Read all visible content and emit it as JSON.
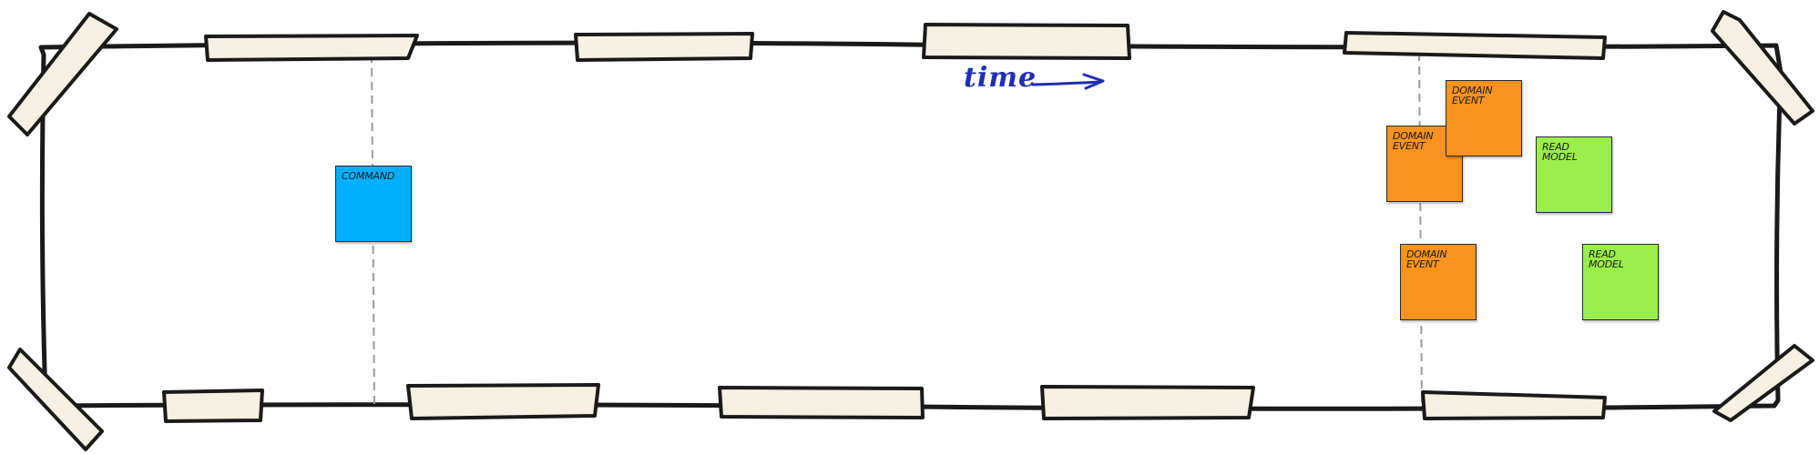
{
  "timeline": {
    "label": "time"
  },
  "stickies": [
    {
      "type": "command",
      "label": "Command",
      "color": "#00b0ff"
    },
    {
      "type": "domain-event",
      "label": "Domain\nEvent",
      "color": "#f7931e"
    },
    {
      "type": "domain-event",
      "label": "Domain\nEvent",
      "color": "#f7931e"
    },
    {
      "type": "domain-event",
      "label": "Domain\nEvent",
      "color": "#f7931e"
    },
    {
      "type": "read-model",
      "label": "Read Model",
      "color": "#99ee4a"
    },
    {
      "type": "read-model",
      "label": "Read Model",
      "color": "#99ee4a"
    }
  ],
  "colors": {
    "board_outline": "#1a1a1a",
    "tape": "#f5f0e1",
    "divider": "#9a9a9a",
    "arrow": "#1f2fb0"
  }
}
